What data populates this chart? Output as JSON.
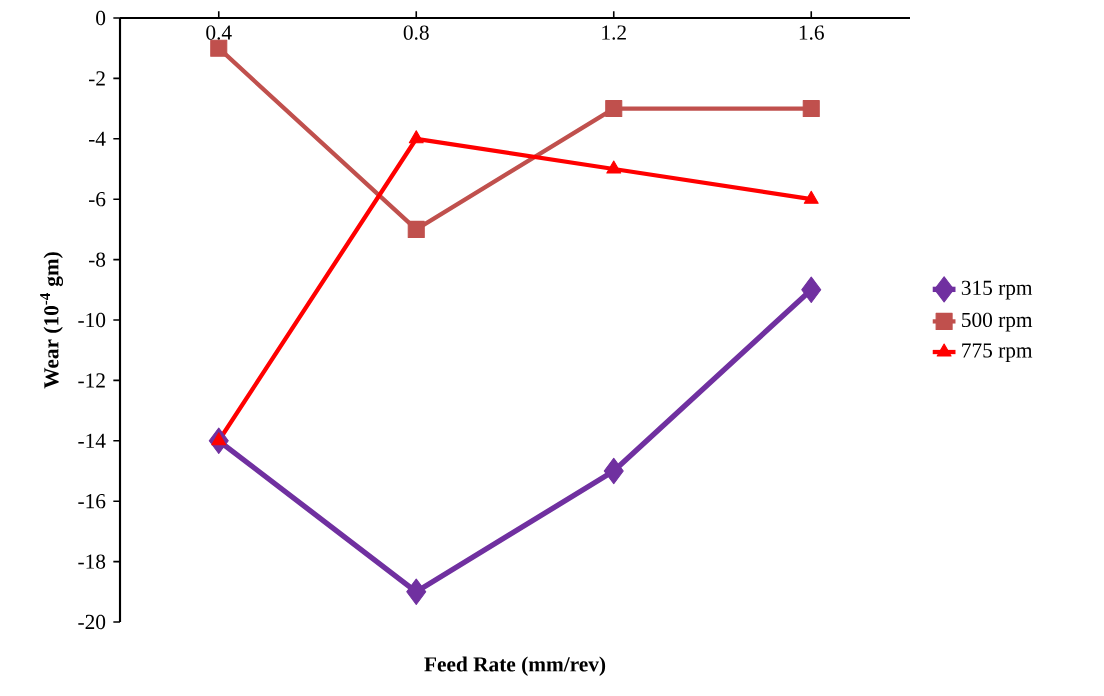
{
  "chart_data": {
    "type": "line",
    "xlabel": "Feed Rate (mm/rev)",
    "ylabel": "Wear (10$^{-4}$ gm)",
    "categories": [
      "0.4",
      "0.8",
      "1.2",
      "1.6"
    ],
    "series": [
      {
        "name": "315 rpm",
        "color": "#7030a0",
        "marker": "diamond",
        "values": [
          -14,
          -19,
          -15,
          -9
        ]
      },
      {
        "name": "500 rpm",
        "color": "#c0504d",
        "marker": "square",
        "values": [
          -1,
          -7,
          -3,
          -3
        ]
      },
      {
        "name": "775 rpm",
        "color": "#ff0000",
        "marker": "triangle",
        "values": [
          -14,
          -4,
          -5,
          -6
        ]
      }
    ],
    "ylim": [
      -20,
      0
    ],
    "yticks": [
      -20,
      -18,
      -16,
      -14,
      -12,
      -10,
      -8,
      -6,
      -4,
      -2,
      0
    ],
    "grid": false,
    "legend": "right",
    "line_style": "solid"
  }
}
